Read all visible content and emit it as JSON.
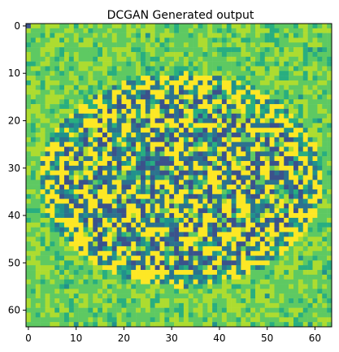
{
  "chart_data": {
    "type": "heatmap",
    "title": "DCGAN Generated output",
    "xlabel": "",
    "ylabel": "",
    "rows": 64,
    "cols": 64,
    "xlim": [
      -0.5,
      63.5
    ],
    "ylim": [
      63.5,
      -0.5
    ],
    "x_ticks": [
      0,
      10,
      20,
      30,
      40,
      50,
      60
    ],
    "y_ticks": [
      0,
      10,
      20,
      30,
      40,
      50,
      60
    ],
    "grid": false,
    "colormap": "viridis",
    "colors": {
      "low": "#3b528b",
      "mid": "#21918c",
      "high": "#5ec962",
      "top": "#fde725",
      "background": "#b5de2b"
    },
    "image_pattern": "textured disc on light green background"
  }
}
